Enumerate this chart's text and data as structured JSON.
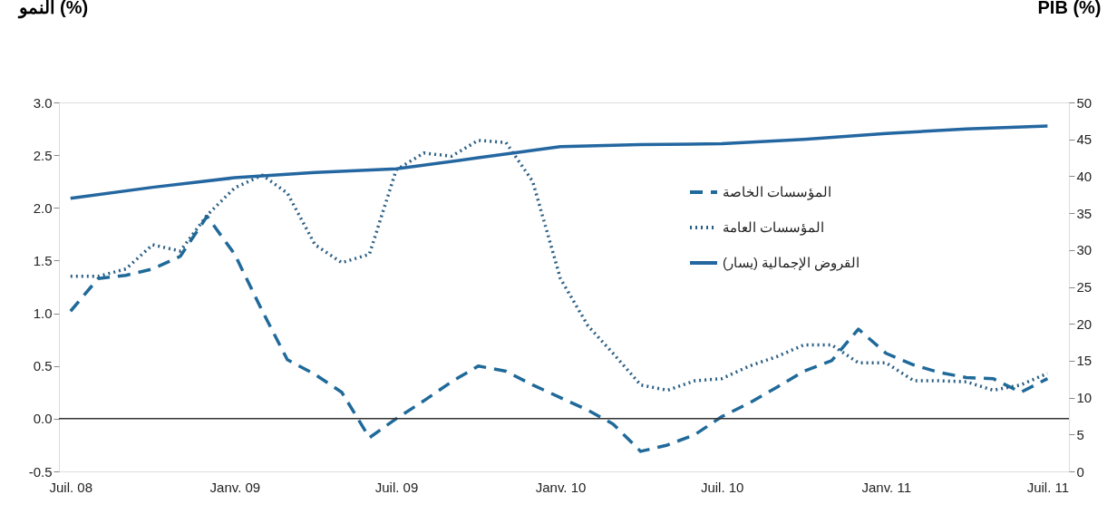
{
  "chart_data": {
    "type": "line",
    "ylabel": "النمو (%)",
    "y2label": "PIB (%)",
    "x": [
      "2008-07",
      "2008-08",
      "2008-09",
      "2008-10",
      "2008-11",
      "2008-12",
      "2009-01",
      "2009-02",
      "2009-03",
      "2009-04",
      "2009-05",
      "2009-06",
      "2009-07",
      "2009-08",
      "2009-09",
      "2009-10",
      "2009-11",
      "2009-12",
      "2010-01",
      "2010-02",
      "2010-03",
      "2010-04",
      "2010-05",
      "2010-06",
      "2010-07",
      "2010-08",
      "2010-09",
      "2010-10",
      "2010-11",
      "2010-12",
      "2011-01",
      "2011-02",
      "2011-03",
      "2011-04",
      "2011-05",
      "2011-06",
      "2011-07"
    ],
    "series": [
      {
        "name": "المؤسسات الخاصة",
        "color": "#1f6a9a",
        "line_style": "dashed",
        "values": [
          1.02,
          1.33,
          1.36,
          1.42,
          1.54,
          1.92,
          1.56,
          1.02,
          0.56,
          0.42,
          0.25,
          -0.18,
          0.0,
          0.17,
          0.35,
          0.5,
          0.45,
          0.32,
          0.2,
          0.08,
          -0.05,
          -0.31,
          -0.25,
          -0.15,
          0.02,
          0.15,
          0.3,
          0.45,
          0.55,
          0.85,
          0.62,
          0.51,
          0.44,
          0.39,
          0.38,
          0.25,
          0.38
        ]
      },
      {
        "name": "المؤسسات العامة",
        "color": "#2a5f85",
        "line_style": "dotted",
        "values": [
          1.35,
          1.35,
          1.42,
          1.65,
          1.59,
          1.93,
          2.19,
          2.31,
          2.14,
          1.65,
          1.48,
          1.56,
          2.36,
          2.52,
          2.49,
          2.64,
          2.62,
          2.25,
          1.33,
          0.88,
          0.62,
          0.32,
          0.27,
          0.36,
          0.38,
          0.5,
          0.59,
          0.7,
          0.7,
          0.53,
          0.53,
          0.36,
          0.36,
          0.35,
          0.27,
          0.32,
          0.43
        ]
      },
      {
        "name": "القروض الإجمالية (يسار)",
        "color": "#2467a0",
        "line_style": "solid",
        "axis": "y2",
        "x": [
          "2008-07",
          "2008-10",
          "2009-01",
          "2009-04",
          "2009-07",
          "2009-10",
          "2010-01",
          "2010-04",
          "2010-07",
          "2010-10",
          "2011-01",
          "2011-04",
          "2011-07"
        ],
        "values": [
          37,
          38.5,
          39.8,
          40.5,
          41,
          42.5,
          44,
          44.3,
          44.4,
          45,
          45.8,
          46.4,
          46.8
        ]
      }
    ],
    "xlim": [
      "2008-06-18",
      "2011-07-25"
    ],
    "xticks": [
      {
        "value": "2008-07",
        "label": "Juil. 08"
      },
      {
        "value": "2009-01",
        "label": "Janv. 09"
      },
      {
        "value": "2009-07",
        "label": "Juil. 09"
      },
      {
        "value": "2010-01",
        "label": "Janv. 10"
      },
      {
        "value": "2010-07",
        "label": "Juil. 10"
      },
      {
        "value": "2011-01",
        "label": "Janv. 11"
      },
      {
        "value": "2011-07",
        "label": "Juil. 11"
      }
    ],
    "ylim": [
      -0.5,
      3.0
    ],
    "yticks": [
      {
        "value": -0.5,
        "label": "-0.5"
      },
      {
        "value": 0,
        "label": "0.0"
      },
      {
        "value": 0.5,
        "label": "0.5"
      },
      {
        "value": 1,
        "label": "1.0"
      },
      {
        "value": 1.5,
        "label": "1.5"
      },
      {
        "value": 2,
        "label": "2.0"
      },
      {
        "value": 2.5,
        "label": "2.5"
      },
      {
        "value": 3,
        "label": "3.0"
      }
    ],
    "y2lim": [
      0,
      50
    ],
    "y2ticks": [
      0,
      5,
      10,
      15,
      20,
      25,
      30,
      35,
      40,
      45,
      50
    ],
    "ref_lines": [
      {
        "axis": "y",
        "value": 0,
        "color": "#333333"
      }
    ],
    "legend": "right",
    "marker": "none",
    "grid": false
  }
}
